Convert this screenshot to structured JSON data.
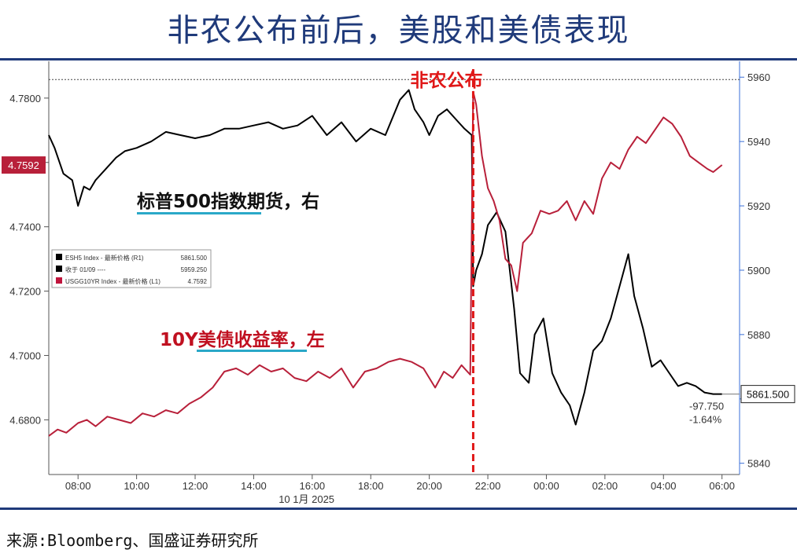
{
  "header": {
    "title": "非农公布前后，美股和美债表现"
  },
  "footer": {
    "source": "来源:Bloomberg、国盛证券研究所"
  },
  "chart_data": {
    "type": "line",
    "title": "非农公布前后，美股和美债表现",
    "xlabel": "10 1月 2025",
    "x_ticks": [
      "08:00",
      "10:00",
      "12:00",
      "14:00",
      "16:00",
      "18:00",
      "20:00",
      "22:00",
      "00:00",
      "02:00",
      "04:00",
      "06:00"
    ],
    "x_range_hours": [
      7.0,
      30.6
    ],
    "left_axis": {
      "ticks": [
        "4.6800",
        "4.7000",
        "4.7200",
        "4.7400",
        "4.7600",
        "4.7800"
      ],
      "ylim": [
        4.663,
        4.789
      ]
    },
    "right_axis": {
      "ticks": [
        "5840",
        "5860",
        "5880",
        "5900",
        "5920",
        "5940",
        "5960"
      ],
      "ylim": [
        5836.5,
        5962.5
      ]
    },
    "event": {
      "label": "非农公布",
      "x_hour": 21.5
    },
    "reference_line": {
      "label": "收于 01/09",
      "value": 5959.25,
      "axis": "right"
    },
    "annotations": {
      "es_label": "标普500指数期货，右",
      "yield_label": "10Y美债收益率，左",
      "es_change": "-97.750",
      "es_change_pct": "-1.64%",
      "es_last": "5861.500",
      "yield_last": "4.7592"
    },
    "legend": {
      "placement": "left-middle",
      "items": [
        {
          "name": "ESH5 Index - 最新价格 (R1)",
          "value": "5861.500",
          "color": "#000000"
        },
        {
          "name": "收于 01/09 ----",
          "value": "5959.250",
          "color": "#000000"
        },
        {
          "name": "USGG10YR Index - 最新价格 (L1)",
          "value": "4.7592",
          "color": "#c0143c"
        }
      ]
    },
    "colors": {
      "es": "#000000",
      "yield": "#b8203a",
      "event": "#e01818",
      "axis_right": "#3a6fd8",
      "title": "#1f3a7a"
    },
    "series": [
      {
        "name": "ESH5 Index - 最新价格 (R1)",
        "axis": "right",
        "x": [
          7.0,
          7.2,
          7.5,
          7.8,
          8.0,
          8.2,
          8.4,
          8.6,
          8.8,
          9.0,
          9.3,
          9.6,
          10.0,
          10.5,
          11.0,
          11.5,
          12.0,
          12.5,
          13.0,
          13.5,
          14.0,
          14.5,
          15.0,
          15.5,
          16.0,
          16.5,
          17.0,
          17.5,
          18.0,
          18.5,
          19.0,
          19.3,
          19.5,
          19.8,
          20.0,
          20.3,
          20.6,
          20.9,
          21.2,
          21.45,
          21.5,
          21.6,
          21.8,
          22.0,
          22.3,
          22.6,
          22.9,
          23.1,
          23.4,
          23.6,
          23.9,
          24.2,
          24.5,
          24.8,
          25.0,
          25.3,
          25.6,
          25.9,
          26.2,
          26.5,
          26.8,
          27.0,
          27.3,
          27.6,
          27.9,
          28.2,
          28.5,
          28.8,
          29.1,
          29.4,
          29.7,
          30.0
        ],
        "values": [
          5942,
          5938,
          5930,
          5928,
          5920,
          5926,
          5925,
          5928,
          5930,
          5932,
          5935,
          5937,
          5938,
          5940,
          5943,
          5942,
          5941,
          5942,
          5944,
          5944,
          5945,
          5946,
          5944,
          5945,
          5948,
          5942,
          5946,
          5940,
          5944,
          5942,
          5953,
          5956,
          5950,
          5946,
          5942,
          5948,
          5950,
          5947,
          5944,
          5942,
          5895,
          5900,
          5905,
          5914,
          5918,
          5912,
          5888,
          5868,
          5865,
          5880,
          5885,
          5868,
          5862,
          5858,
          5852,
          5862,
          5875,
          5878,
          5885,
          5895,
          5905,
          5892,
          5882,
          5870,
          5872,
          5868,
          5864,
          5865,
          5864,
          5862,
          5861.5,
          5861.5
        ]
      },
      {
        "name": "USGG10YR Index - 最新价格 (L1)",
        "axis": "left",
        "x": [
          7.0,
          7.3,
          7.6,
          8.0,
          8.3,
          8.6,
          9.0,
          9.4,
          9.8,
          10.2,
          10.6,
          11.0,
          11.4,
          11.8,
          12.2,
          12.6,
          13.0,
          13.4,
          13.8,
          14.2,
          14.6,
          15.0,
          15.4,
          15.8,
          16.2,
          16.6,
          17.0,
          17.4,
          17.8,
          18.2,
          18.6,
          19.0,
          19.4,
          19.8,
          20.2,
          20.5,
          20.8,
          21.1,
          21.4,
          21.5,
          21.6,
          21.8,
          22.0,
          22.2,
          22.4,
          22.6,
          22.8,
          23.0,
          23.2,
          23.5,
          23.8,
          24.1,
          24.4,
          24.7,
          25.0,
          25.3,
          25.6,
          25.9,
          26.2,
          26.5,
          26.8,
          27.1,
          27.4,
          27.7,
          28.0,
          28.3,
          28.6,
          28.9,
          29.2,
          29.5,
          29.7,
          30.0
        ],
        "values": [
          4.675,
          4.677,
          4.676,
          4.679,
          4.68,
          4.678,
          4.681,
          4.68,
          4.679,
          4.682,
          4.681,
          4.683,
          4.682,
          4.685,
          4.687,
          4.69,
          4.695,
          4.696,
          4.694,
          4.697,
          4.695,
          4.696,
          4.693,
          4.692,
          4.695,
          4.693,
          4.696,
          4.69,
          4.695,
          4.696,
          4.698,
          4.699,
          4.698,
          4.696,
          4.69,
          4.695,
          4.693,
          4.697,
          4.694,
          4.782,
          4.778,
          4.762,
          4.752,
          4.748,
          4.742,
          4.73,
          4.728,
          4.72,
          4.735,
          4.738,
          4.745,
          4.744,
          4.745,
          4.748,
          4.742,
          4.748,
          4.744,
          4.755,
          4.76,
          4.758,
          4.764,
          4.768,
          4.766,
          4.77,
          4.774,
          4.772,
          4.768,
          4.762,
          4.76,
          4.758,
          4.757,
          4.7592
        ]
      }
    ]
  }
}
